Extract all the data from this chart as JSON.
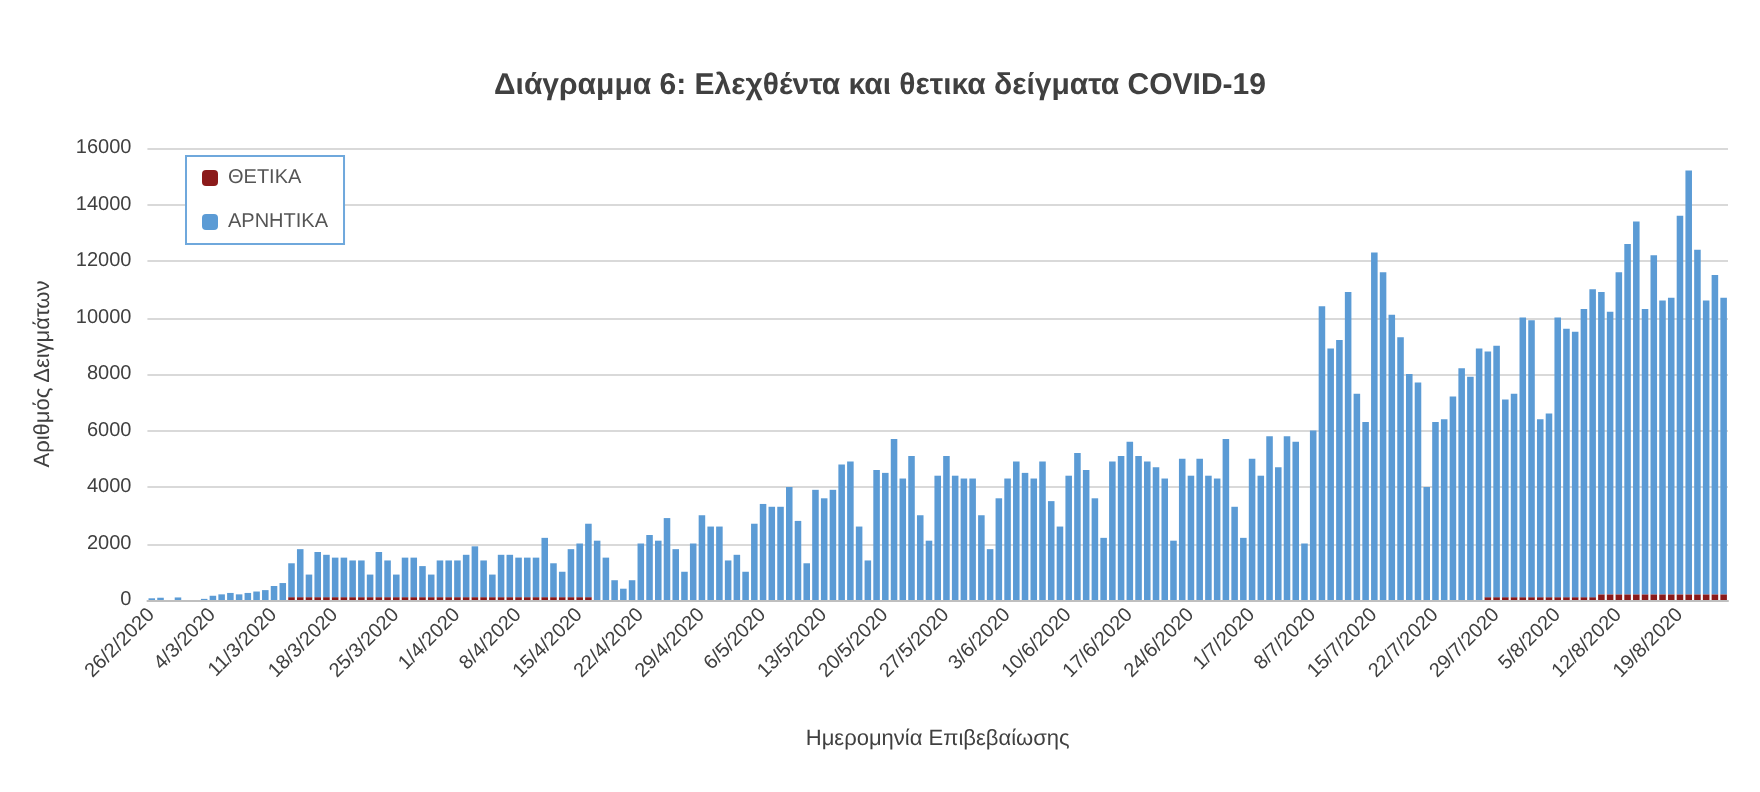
{
  "chart_data": {
    "type": "bar",
    "stacked": true,
    "title": "Διάγραμμα 6: Ελεχθέντα και θετικα δείγματα COVID-19",
    "xlabel": "Ημερομηνία Επιβεβαίωσης",
    "ylabel": "Αριθμός Δειγμάτων",
    "ylim": [
      0,
      16000
    ],
    "yticks": [
      0,
      2000,
      4000,
      6000,
      8000,
      10000,
      12000,
      14000,
      16000
    ],
    "grid": "y",
    "legend": "top left",
    "categories": [
      "26/2/2020",
      null,
      null,
      null,
      null,
      null,
      null,
      "4/3/2020",
      null,
      null,
      null,
      null,
      null,
      null,
      "11/3/2020",
      null,
      null,
      null,
      null,
      null,
      null,
      "18/3/2020",
      null,
      null,
      null,
      null,
      null,
      null,
      "25/3/2020",
      null,
      null,
      null,
      null,
      null,
      null,
      "1/4/2020",
      null,
      null,
      null,
      null,
      null,
      null,
      "8/4/2020",
      null,
      null,
      null,
      null,
      null,
      null,
      "15/4/2020",
      null,
      null,
      null,
      null,
      null,
      null,
      "22/4/2020",
      null,
      null,
      null,
      null,
      null,
      null,
      "29/4/2020",
      null,
      null,
      null,
      null,
      null,
      null,
      "6/5/2020",
      null,
      null,
      null,
      null,
      null,
      null,
      "13/5/2020",
      null,
      null,
      null,
      null,
      null,
      null,
      "20/5/2020",
      null,
      null,
      null,
      null,
      null,
      null,
      "27/5/2020",
      null,
      null,
      null,
      null,
      null,
      null,
      "3/6/2020",
      null,
      null,
      null,
      null,
      null,
      null,
      "10/6/2020",
      null,
      null,
      null,
      null,
      null,
      null,
      "17/6/2020",
      null,
      null,
      null,
      null,
      null,
      null,
      "24/6/2020",
      null,
      null,
      null,
      null,
      null,
      null,
      "1/7/2020",
      null,
      null,
      null,
      null,
      null,
      null,
      "8/7/2020",
      null,
      null,
      null,
      null,
      null,
      null,
      "15/7/2020",
      null,
      null,
      null,
      null,
      null,
      null,
      "22/7/2020",
      null,
      null,
      null,
      null,
      null,
      null,
      "29/7/2020",
      null,
      null,
      null,
      null,
      null,
      null,
      "5/8/2020",
      null,
      null,
      null,
      null,
      null,
      null,
      "12/8/2020",
      null,
      null,
      null,
      null,
      null,
      null,
      "19/8/2020",
      null,
      null,
      null,
      null,
      null
    ],
    "series": [
      {
        "name": "ΘΕΤΙΚΑ",
        "color": "#8b1a1a",
        "values": [
          0,
          0,
          0,
          0,
          0,
          0,
          0,
          0,
          0,
          0,
          0,
          0,
          0,
          0,
          0,
          0,
          100,
          100,
          100,
          100,
          100,
          100,
          100,
          100,
          100,
          100,
          100,
          100,
          100,
          100,
          100,
          100,
          100,
          100,
          100,
          100,
          100,
          100,
          100,
          100,
          100,
          100,
          100,
          100,
          100,
          100,
          100,
          100,
          100,
          100,
          100,
          0,
          0,
          0,
          0,
          0,
          0,
          0,
          0,
          0,
          0,
          0,
          0,
          0,
          0,
          0,
          0,
          0,
          0,
          0,
          0,
          0,
          0,
          0,
          0,
          0,
          0,
          0,
          0,
          0,
          0,
          0,
          0,
          0,
          0,
          0,
          0,
          0,
          0,
          0,
          0,
          0,
          0,
          0,
          0,
          0,
          0,
          0,
          0,
          0,
          0,
          0,
          0,
          0,
          0,
          0,
          0,
          0,
          0,
          0,
          0,
          0,
          0,
          0,
          0,
          0,
          0,
          0,
          0,
          0,
          0,
          0,
          0,
          0,
          0,
          0,
          0,
          0,
          0,
          0,
          0,
          0,
          0,
          0,
          0,
          0,
          0,
          0,
          0,
          0,
          0,
          0,
          0,
          0,
          0,
          0,
          0,
          0,
          0,
          0,
          0,
          0,
          0,
          100,
          100,
          100,
          100,
          100,
          100,
          100,
          100,
          100,
          100,
          100,
          100,
          100,
          200,
          200,
          200,
          200,
          200,
          200,
          200,
          200,
          200,
          200,
          200,
          200,
          200,
          200,
          200
        ]
      },
      {
        "name": "ΑΡΝΗΤΙΚΑ",
        "color": "#5b9bd5",
        "values": [
          60,
          80,
          null,
          90,
          null,
          null,
          40,
          150,
          200,
          250,
          200,
          250,
          300,
          350,
          500,
          600,
          1200,
          1700,
          800,
          1600,
          1500,
          1400,
          1400,
          1300,
          1300,
          800,
          1600,
          1300,
          800,
          1400,
          1400,
          1100,
          800,
          1300,
          1300,
          1300,
          1500,
          1800,
          1300,
          800,
          1500,
          1500,
          1400,
          1400,
          1400,
          2100,
          1200,
          900,
          1700,
          1900,
          2600,
          2100,
          1500,
          700,
          400,
          700,
          2000,
          2300,
          2100,
          2900,
          1800,
          1000,
          2000,
          3000,
          2600,
          2600,
          1400,
          1600,
          1000,
          2700,
          3400,
          3300,
          3300,
          4000,
          2800,
          1300,
          3900,
          3600,
          3900,
          4800,
          4900,
          2600,
          1400,
          4600,
          4500,
          5700,
          4300,
          5100,
          3000,
          2100,
          4400,
          5100,
          4400,
          4300,
          4300,
          3000,
          1800,
          3600,
          4300,
          4900,
          4500,
          4300,
          4900,
          3500,
          2600,
          4400,
          5200,
          4600,
          3600,
          2200,
          4900,
          5100,
          5600,
          5100,
          4900,
          4700,
          4300,
          2100,
          5000,
          4400,
          5000,
          4400,
          4300,
          5700,
          3300,
          2200,
          5000,
          4400,
          5800,
          4700,
          5800,
          5600,
          2000,
          6000,
          10400,
          8900,
          9200,
          10900,
          7300,
          6300,
          12300,
          11600,
          10100,
          9300,
          8000,
          7700,
          4000,
          6300,
          6400,
          7200,
          8200,
          7900,
          8900,
          8700,
          8900,
          7000,
          7200,
          9900,
          9800,
          6300,
          6500,
          9900,
          9500,
          9400,
          10200,
          10900,
          10700,
          10000,
          11400,
          12400,
          13200,
          10100,
          12000,
          10400,
          10500,
          13400,
          15000,
          12200,
          10400,
          11300,
          10500
        ]
      }
    ]
  }
}
